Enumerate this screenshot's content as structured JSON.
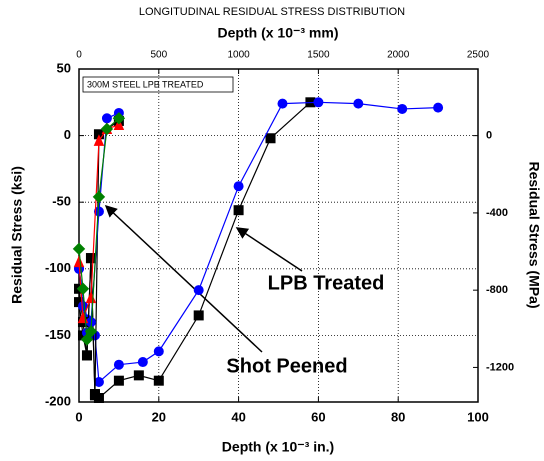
{
  "chart_data": {
    "type": "line",
    "title": "LONGITUDINAL RESIDUAL STRESS DISTRIBUTION",
    "x_label": "Depth (x 10⁻³ in.)",
    "x2_label": "Depth (x 10⁻³ mm)",
    "y_label": "Residual Stress (ksi)",
    "y2_label": "Residual Stress (MPa)",
    "annotations": [
      "300M STEEL LPB TREATED",
      "LPB Treated",
      "Shot Peened"
    ],
    "xlim": [
      0,
      100
    ],
    "xticks": [
      0,
      20,
      40,
      60,
      80,
      100
    ],
    "x2lim": [
      0,
      2500
    ],
    "x2ticks": [
      0,
      500,
      1000,
      1500,
      2000,
      2500
    ],
    "ylim": [
      -200,
      50
    ],
    "yticks": [
      50,
      0,
      -50,
      -100,
      -150,
      -200
    ],
    "y2lim": [
      -1379,
      345
    ],
    "y2ticks": [
      0,
      -400,
      -800,
      -1200
    ],
    "grid": true,
    "series": [
      {
        "color": "#000000",
        "marker": "square",
        "x": [
          0,
          1,
          2,
          3,
          4,
          5,
          10,
          15,
          20,
          30,
          40,
          48,
          58
        ],
        "values": [
          -125,
          -150,
          -165,
          -92,
          -195,
          -197,
          -184,
          -180,
          -184,
          -135,
          -56,
          -2,
          25
        ]
      },
      {
        "color": "#0000ff",
        "marker": "circle",
        "x": [
          0,
          2,
          4,
          5,
          10,
          16,
          20,
          30,
          40,
          51,
          60,
          70,
          81,
          90
        ],
        "values": [
          -100,
          -138,
          -150,
          -185,
          -172,
          -170,
          -162,
          -116,
          -38,
          24,
          25,
          24,
          20,
          21
        ]
      },
      {
        "color": "#000000",
        "marker": "square",
        "x": [
          0,
          1,
          2,
          3,
          4,
          5,
          10
        ],
        "values": [
          -115,
          -140,
          -165,
          -92,
          -194,
          1,
          11
        ]
      },
      {
        "color": "#0000ff",
        "marker": "circle",
        "x": [
          0,
          1,
          2,
          3,
          5,
          7,
          10
        ],
        "values": [
          -100,
          -128,
          -148,
          -140,
          -57,
          13,
          17
        ]
      },
      {
        "color": "#ff0000",
        "marker": "triangle",
        "x": [
          0,
          1,
          3,
          5,
          7,
          10
        ],
        "values": [
          -95,
          -137,
          -122,
          -4,
          5,
          8
        ]
      },
      {
        "color": "#008000",
        "marker": "diamond",
        "x": [
          0,
          1,
          2,
          3,
          5,
          7,
          10
        ],
        "values": [
          -85,
          -115,
          -153,
          -147,
          -46,
          5,
          13
        ]
      }
    ]
  }
}
